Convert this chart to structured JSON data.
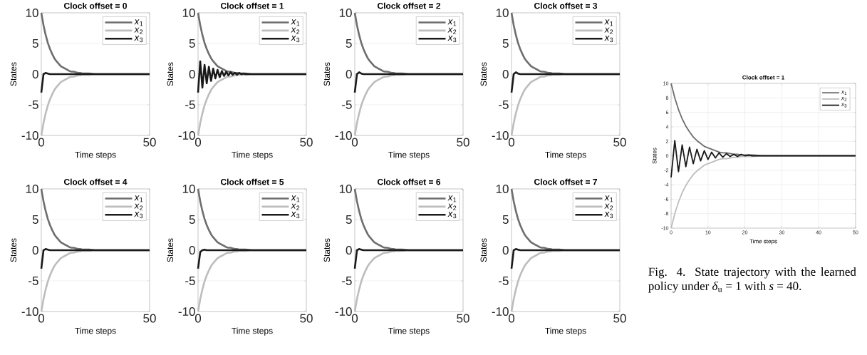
{
  "chart_data": [
    {
      "type": "line",
      "title": "Clock offset = 0",
      "xlabel": "Time steps",
      "ylabel": "States",
      "xlim": [
        0,
        50
      ],
      "ylim": [
        -10,
        10
      ],
      "xticks": [
        0,
        50
      ],
      "yticks": [
        -10,
        -5,
        0,
        5,
        10
      ],
      "grid": true,
      "legend": "top right",
      "x": [
        0,
        1,
        2,
        3,
        4,
        5,
        6,
        7,
        8,
        9,
        10,
        11,
        12,
        13,
        14,
        15,
        16,
        17,
        18,
        19,
        20,
        21,
        22,
        25,
        30,
        40,
        50
      ],
      "series": [
        {
          "name": "*x*$_{1}$",
          "color": "#6e6e6e",
          "values": [
            10,
            8,
            6.4,
            5.1,
            4.1,
            3.3,
            2.6,
            2.1,
            1.7,
            1.3,
            1.1,
            0.9,
            0.7,
            0.5,
            0.4,
            0.4,
            0.3,
            0.2,
            0.2,
            0.1,
            0.1,
            0.1,
            0.1,
            0,
            0,
            0,
            0
          ]
        },
        {
          "name": "*x*$_{2}$",
          "color": "#bdbdbd",
          "values": [
            -10,
            -8,
            -6.4,
            -5.1,
            -4.1,
            -3.3,
            -2.6,
            -2.1,
            -1.7,
            -1.3,
            -1.1,
            -0.9,
            -0.7,
            -0.5,
            -0.4,
            -0.4,
            -0.3,
            -0.2,
            -0.2,
            -0.1,
            -0.1,
            -0.1,
            -0.1,
            0,
            0,
            0,
            0
          ]
        },
        {
          "name": "*x*$_{3}$",
          "color": "#1a1a1a",
          "values": [
            -3,
            0,
            0.2,
            0.1,
            0,
            0,
            0,
            0,
            0,
            0,
            0,
            0,
            0,
            0,
            0,
            0,
            0,
            0,
            0,
            0,
            0,
            0,
            0,
            0,
            0,
            0,
            0
          ]
        }
      ]
    },
    {
      "type": "line",
      "title": "Clock offset = 1",
      "xlabel": "Time steps",
      "ylabel": "States",
      "xlim": [
        0,
        50
      ],
      "ylim": [
        -10,
        10
      ],
      "xticks": [
        0,
        50
      ],
      "yticks": [
        -10,
        -5,
        0,
        5,
        10
      ],
      "grid": true,
      "legend": "top right",
      "x": [
        0,
        1,
        2,
        3,
        4,
        5,
        6,
        7,
        8,
        9,
        10,
        11,
        12,
        13,
        14,
        15,
        16,
        17,
        18,
        19,
        20,
        21,
        22,
        25,
        30,
        40,
        50
      ],
      "series": [
        {
          "name": "*x*$_{1}$",
          "color": "#6e6e6e",
          "values": [
            10,
            8,
            6.4,
            5.1,
            4.1,
            3.3,
            2.6,
            2.1,
            1.7,
            1.3,
            1.1,
            0.9,
            0.7,
            0.5,
            0.4,
            0.4,
            0.3,
            0.2,
            0.2,
            0.1,
            0.1,
            0.1,
            0.1,
            0,
            0,
            0,
            0
          ]
        },
        {
          "name": "*x*$_{2}$",
          "color": "#bdbdbd",
          "values": [
            -10,
            -8,
            -6.4,
            -5.1,
            -4.1,
            -3.3,
            -2.6,
            -2.1,
            -1.7,
            -1.3,
            -1.1,
            -0.9,
            -0.7,
            -0.5,
            -0.4,
            -0.4,
            -0.3,
            -0.2,
            -0.2,
            -0.1,
            -0.1,
            -0.1,
            -0.1,
            0,
            0,
            0,
            0
          ]
        },
        {
          "name": "*x*$_{3}$",
          "color": "#1a1a1a",
          "values": [
            -3,
            2.1,
            -2.2,
            1.5,
            -1.5,
            1.2,
            -1.1,
            0.9,
            -0.7,
            0.7,
            -0.5,
            0.5,
            -0.3,
            0.4,
            -0.2,
            0.3,
            -0.1,
            0.2,
            -0.1,
            0.2,
            0,
            0.1,
            0,
            0,
            0,
            0,
            0
          ]
        }
      ]
    },
    {
      "type": "line",
      "title": "Clock offset = 2",
      "xlabel": "Time steps",
      "ylabel": "States",
      "xlim": [
        0,
        50
      ],
      "ylim": [
        -10,
        10
      ],
      "xticks": [
        0,
        50
      ],
      "yticks": [
        -10,
        -5,
        0,
        5,
        10
      ],
      "grid": true,
      "legend": "top right",
      "x": [
        0,
        1,
        2,
        3,
        4,
        5,
        6,
        7,
        8,
        9,
        10,
        11,
        12,
        13,
        14,
        15,
        16,
        17,
        18,
        19,
        20,
        21,
        22,
        25,
        30,
        40,
        50
      ],
      "series": [
        {
          "name": "*x*$_{1}$",
          "color": "#6e6e6e",
          "values": [
            10,
            8,
            6.4,
            5.1,
            4.1,
            3.3,
            2.6,
            2.1,
            1.7,
            1.3,
            1.1,
            0.9,
            0.7,
            0.5,
            0.4,
            0.4,
            0.3,
            0.2,
            0.2,
            0.1,
            0.1,
            0.1,
            0.1,
            0,
            0,
            0,
            0
          ]
        },
        {
          "name": "*x*$_{2}$",
          "color": "#bdbdbd",
          "values": [
            -10,
            -8,
            -6.4,
            -5.1,
            -4.1,
            -3.3,
            -2.6,
            -2.1,
            -1.7,
            -1.3,
            -1.1,
            -0.9,
            -0.7,
            -0.5,
            -0.4,
            -0.4,
            -0.3,
            -0.2,
            -0.2,
            -0.1,
            -0.1,
            -0.1,
            -0.1,
            0,
            0,
            0,
            0
          ]
        },
        {
          "name": "*x*$_{3}$",
          "color": "#1a1a1a",
          "values": [
            -3,
            0,
            0.3,
            0.1,
            0,
            0,
            0,
            0,
            0,
            0,
            0,
            0,
            0,
            0,
            0,
            0,
            0,
            0,
            0,
            0,
            0,
            0,
            0,
            0,
            0,
            0,
            0
          ]
        }
      ]
    },
    {
      "type": "line",
      "title": "Clock offset = 3",
      "xlabel": "Time steps",
      "ylabel": "States",
      "xlim": [
        0,
        50
      ],
      "ylim": [
        -10,
        10
      ],
      "xticks": [
        0,
        50
      ],
      "yticks": [
        -10,
        -5,
        0,
        5,
        10
      ],
      "grid": true,
      "legend": "top right",
      "x": [
        0,
        1,
        2,
        3,
        4,
        5,
        6,
        7,
        8,
        9,
        10,
        11,
        12,
        13,
        14,
        15,
        16,
        17,
        18,
        19,
        20,
        21,
        22,
        25,
        30,
        40,
        50
      ],
      "series": [
        {
          "name": "*x*$_{1}$",
          "color": "#6e6e6e",
          "values": [
            10,
            8,
            6.4,
            5.1,
            4.1,
            3.3,
            2.6,
            2.1,
            1.7,
            1.3,
            1.1,
            0.9,
            0.7,
            0.5,
            0.4,
            0.4,
            0.3,
            0.2,
            0.2,
            0.1,
            0.1,
            0.1,
            0.1,
            0,
            0,
            0,
            0
          ]
        },
        {
          "name": "*x*$_{2}$",
          "color": "#bdbdbd",
          "values": [
            -10,
            -8,
            -6.4,
            -5.1,
            -4.1,
            -3.3,
            -2.6,
            -2.1,
            -1.7,
            -1.3,
            -1.1,
            -0.9,
            -0.7,
            -0.5,
            -0.4,
            -0.4,
            -0.3,
            -0.2,
            -0.2,
            -0.1,
            -0.1,
            -0.1,
            -0.1,
            0,
            0,
            0,
            0
          ]
        },
        {
          "name": "*x*$_{3}$",
          "color": "#1a1a1a",
          "values": [
            -3,
            0,
            0.3,
            0.1,
            0,
            0,
            0,
            0,
            0,
            0,
            0,
            0,
            0,
            0,
            0,
            0,
            0,
            0,
            0,
            0,
            0,
            0,
            0,
            0,
            0,
            0,
            0
          ]
        }
      ]
    },
    {
      "type": "line",
      "title": "Clock offset = 4",
      "xlabel": "Time steps",
      "ylabel": "States",
      "xlim": [
        0,
        50
      ],
      "ylim": [
        -10,
        10
      ],
      "xticks": [
        0,
        50
      ],
      "yticks": [
        -10,
        -5,
        0,
        5,
        10
      ],
      "grid": true,
      "legend": "top right",
      "x": [
        0,
        1,
        2,
        3,
        4,
        5,
        6,
        7,
        8,
        9,
        10,
        11,
        12,
        13,
        14,
        15,
        16,
        17,
        18,
        19,
        20,
        21,
        22,
        25,
        30,
        40,
        50
      ],
      "series": [
        {
          "name": "*x*$_{1}$",
          "color": "#6e6e6e",
          "values": [
            10,
            8,
            6.4,
            5.1,
            4.1,
            3.3,
            2.6,
            2.1,
            1.7,
            1.3,
            1.1,
            0.9,
            0.7,
            0.5,
            0.4,
            0.4,
            0.3,
            0.2,
            0.2,
            0.1,
            0.1,
            0.1,
            0.1,
            0,
            0,
            0,
            0
          ]
        },
        {
          "name": "*x*$_{2}$",
          "color": "#bdbdbd",
          "values": [
            -10,
            -8,
            -6.4,
            -5.1,
            -4.1,
            -3.3,
            -2.6,
            -2.1,
            -1.7,
            -1.3,
            -1.1,
            -0.9,
            -0.7,
            -0.5,
            -0.4,
            -0.4,
            -0.3,
            -0.2,
            -0.2,
            -0.1,
            -0.1,
            -0.1,
            -0.1,
            0,
            0,
            0,
            0
          ]
        },
        {
          "name": "*x*$_{3}$",
          "color": "#1a1a1a",
          "values": [
            -3,
            0,
            0.2,
            0.1,
            0,
            0,
            0,
            0,
            0,
            0,
            0,
            0,
            0,
            0,
            0,
            0,
            0,
            0,
            0,
            0,
            0,
            0,
            0,
            0,
            0,
            0,
            0
          ]
        }
      ]
    },
    {
      "type": "line",
      "title": "Clock offset = 5",
      "xlabel": "Time steps",
      "ylabel": "States",
      "xlim": [
        0,
        50
      ],
      "ylim": [
        -10,
        10
      ],
      "xticks": [
        0,
        50
      ],
      "yticks": [
        -10,
        -5,
        0,
        5,
        10
      ],
      "grid": true,
      "legend": "top right",
      "x": [
        0,
        1,
        2,
        3,
        4,
        5,
        6,
        7,
        8,
        9,
        10,
        11,
        12,
        13,
        14,
        15,
        16,
        17,
        18,
        19,
        20,
        21,
        22,
        25,
        30,
        40,
        50
      ],
      "series": [
        {
          "name": "*x*$_{1}$",
          "color": "#6e6e6e",
          "values": [
            10,
            8,
            6.4,
            5.1,
            4.1,
            3.3,
            2.6,
            2.1,
            1.7,
            1.3,
            1.1,
            0.9,
            0.7,
            0.5,
            0.4,
            0.4,
            0.3,
            0.2,
            0.2,
            0.1,
            0.1,
            0.1,
            0.1,
            0,
            0,
            0,
            0
          ]
        },
        {
          "name": "*x*$_{2}$",
          "color": "#bdbdbd",
          "values": [
            -10,
            -8,
            -6.4,
            -5.1,
            -4.1,
            -3.3,
            -2.6,
            -2.1,
            -1.7,
            -1.3,
            -1.1,
            -0.9,
            -0.7,
            -0.5,
            -0.4,
            -0.4,
            -0.3,
            -0.2,
            -0.2,
            -0.1,
            -0.1,
            -0.1,
            -0.1,
            0,
            0,
            0,
            0
          ]
        },
        {
          "name": "*x*$_{3}$",
          "color": "#1a1a1a",
          "values": [
            -3,
            -0.3,
            0,
            0.1,
            0,
            0,
            0,
            0,
            0,
            0,
            0,
            0,
            0,
            0,
            0,
            0,
            0,
            0,
            0,
            0,
            0,
            0,
            0,
            0,
            0,
            0,
            0
          ]
        }
      ]
    },
    {
      "type": "line",
      "title": "Clock offset = 6",
      "xlabel": "Time steps",
      "ylabel": "States",
      "xlim": [
        0,
        50
      ],
      "ylim": [
        -10,
        10
      ],
      "xticks": [
        0,
        50
      ],
      "yticks": [
        -10,
        -5,
        0,
        5,
        10
      ],
      "grid": true,
      "legend": "top right",
      "x": [
        0,
        1,
        2,
        3,
        4,
        5,
        6,
        7,
        8,
        9,
        10,
        11,
        12,
        13,
        14,
        15,
        16,
        17,
        18,
        19,
        20,
        21,
        22,
        25,
        30,
        40,
        50
      ],
      "series": [
        {
          "name": "*x*$_{1}$",
          "color": "#6e6e6e",
          "values": [
            10,
            8,
            6.4,
            5.1,
            4.1,
            3.3,
            2.6,
            2.1,
            1.7,
            1.3,
            1.1,
            0.9,
            0.7,
            0.5,
            0.4,
            0.4,
            0.3,
            0.2,
            0.2,
            0.1,
            0.1,
            0.1,
            0.1,
            0,
            0,
            0,
            0
          ]
        },
        {
          "name": "*x*$_{2}$",
          "color": "#bdbdbd",
          "values": [
            -10,
            -8,
            -6.4,
            -5.1,
            -4.1,
            -3.3,
            -2.6,
            -2.1,
            -1.7,
            -1.3,
            -1.1,
            -0.9,
            -0.7,
            -0.5,
            -0.4,
            -0.4,
            -0.3,
            -0.2,
            -0.2,
            -0.1,
            -0.1,
            -0.1,
            -0.1,
            0,
            0,
            0,
            0
          ]
        },
        {
          "name": "*x*$_{3}$",
          "color": "#1a1a1a",
          "values": [
            -3,
            0,
            0.2,
            0.1,
            0,
            0,
            0,
            0,
            0,
            0,
            0,
            0,
            0,
            0,
            0,
            0,
            0,
            0,
            0,
            0,
            0,
            0,
            0,
            0,
            0,
            0,
            0
          ]
        }
      ]
    },
    {
      "type": "line",
      "title": "Clock offset = 7",
      "xlabel": "Time steps",
      "ylabel": "States",
      "xlim": [
        0,
        50
      ],
      "ylim": [
        -10,
        10
      ],
      "xticks": [
        0,
        50
      ],
      "yticks": [
        -10,
        -5,
        0,
        5,
        10
      ],
      "grid": true,
      "legend": "top right",
      "x": [
        0,
        1,
        2,
        3,
        4,
        5,
        6,
        7,
        8,
        9,
        10,
        11,
        12,
        13,
        14,
        15,
        16,
        17,
        18,
        19,
        20,
        21,
        22,
        25,
        30,
        40,
        50
      ],
      "series": [
        {
          "name": "*x*$_{1}$",
          "color": "#6e6e6e",
          "values": [
            10,
            8,
            6.4,
            5.1,
            4.1,
            3.3,
            2.6,
            2.1,
            1.7,
            1.3,
            1.1,
            0.9,
            0.7,
            0.5,
            0.4,
            0.4,
            0.3,
            0.2,
            0.2,
            0.1,
            0.1,
            0.1,
            0.1,
            0,
            0,
            0,
            0
          ]
        },
        {
          "name": "*x*$_{2}$",
          "color": "#bdbdbd",
          "values": [
            -10,
            -8,
            -6.4,
            -5.1,
            -4.1,
            -3.3,
            -2.6,
            -2.1,
            -1.7,
            -1.3,
            -1.1,
            -0.9,
            -0.7,
            -0.5,
            -0.4,
            -0.4,
            -0.3,
            -0.2,
            -0.2,
            -0.1,
            -0.1,
            -0.1,
            -0.1,
            0,
            0,
            0,
            0
          ]
        },
        {
          "name": "*x*$_{3}$",
          "color": "#1a1a1a",
          "values": [
            -3,
            0,
            0.2,
            0.1,
            0,
            0,
            0,
            0,
            0,
            0,
            0,
            0,
            0,
            0,
            0,
            0,
            0,
            0,
            0,
            0,
            0,
            0,
            0,
            0,
            0,
            0,
            0
          ]
        }
      ]
    },
    {
      "type": "line",
      "title": "Clock offset = 1",
      "xlabel": "Time steps",
      "ylabel": "States",
      "xlim": [
        0,
        50
      ],
      "ylim": [
        -10,
        10
      ],
      "xticks": [
        0,
        10,
        20,
        30,
        40,
        50
      ],
      "yticks": [
        -10,
        -8,
        -6,
        -4,
        -2,
        0,
        2,
        4,
        6,
        8,
        10
      ],
      "grid": true,
      "legend": "top right",
      "annotations": [
        "Fig. 4.   State trajectory with the learned policy under *δ*$_{u}$ = 1 with *s* = 40."
      ],
      "x": [
        0,
        1,
        2,
        3,
        4,
        5,
        6,
        7,
        8,
        9,
        10,
        11,
        12,
        13,
        14,
        15,
        16,
        17,
        18,
        19,
        20,
        21,
        22,
        25,
        30,
        40,
        50
      ],
      "series": [
        {
          "name": "*x*$_{1}$",
          "color": "#6e6e6e",
          "values": [
            10,
            8,
            6.4,
            5.1,
            4.1,
            3.3,
            2.6,
            2.1,
            1.7,
            1.3,
            1.1,
            0.9,
            0.7,
            0.5,
            0.4,
            0.4,
            0.3,
            0.2,
            0.2,
            0.1,
            0.1,
            0.1,
            0.1,
            0,
            0,
            0,
            0
          ]
        },
        {
          "name": "*x*$_{2}$",
          "color": "#bdbdbd",
          "values": [
            -10,
            -8,
            -6.4,
            -5.1,
            -4.1,
            -3.3,
            -2.6,
            -2.1,
            -1.7,
            -1.3,
            -1.1,
            -0.9,
            -0.7,
            -0.5,
            -0.4,
            -0.4,
            -0.3,
            -0.2,
            -0.2,
            -0.1,
            -0.1,
            -0.1,
            -0.1,
            0,
            0,
            0,
            0
          ]
        },
        {
          "name": "*x*$_{3}$",
          "color": "#1a1a1a",
          "values": [
            -3,
            2.1,
            -2.2,
            1.5,
            -1.5,
            1.2,
            -1.1,
            0.9,
            -0.7,
            0.7,
            -0.5,
            0.5,
            -0.3,
            0.4,
            -0.2,
            0.3,
            -0.1,
            0.2,
            -0.1,
            0.2,
            0,
            0.1,
            0,
            0,
            0,
            0,
            0
          ]
        }
      ]
    }
  ]
}
